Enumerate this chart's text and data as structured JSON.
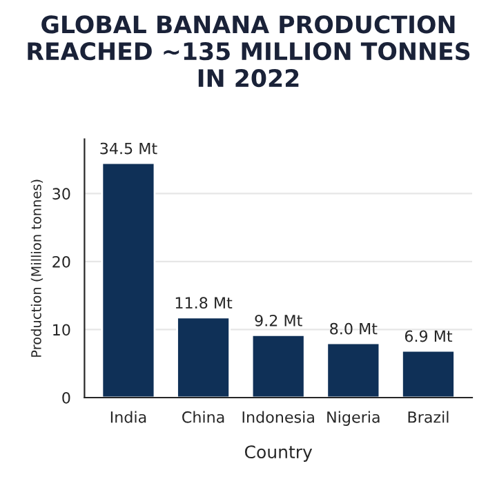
{
  "chart_data": {
    "type": "bar",
    "title": "GLOBAL BANANA PRODUCTION\nREACHED ~135 MILLION TONNES\nIN 2022",
    "xlabel": "Country",
    "ylabel": "Production (Million tonnes)",
    "categories": [
      "India",
      "China",
      "Indonesia",
      "Nigeria",
      "Brazil"
    ],
    "values": [
      34.5,
      11.8,
      9.2,
      8.0,
      6.9
    ],
    "value_labels": [
      "34.5 Mt",
      "11.8 Mt",
      "9.2 Mt",
      "8.0 Mt",
      "6.9 Mt"
    ],
    "color": "#0f3057",
    "ylim": [
      0,
      38
    ],
    "yticks": [
      0,
      10,
      20,
      30
    ],
    "grid": "y"
  }
}
